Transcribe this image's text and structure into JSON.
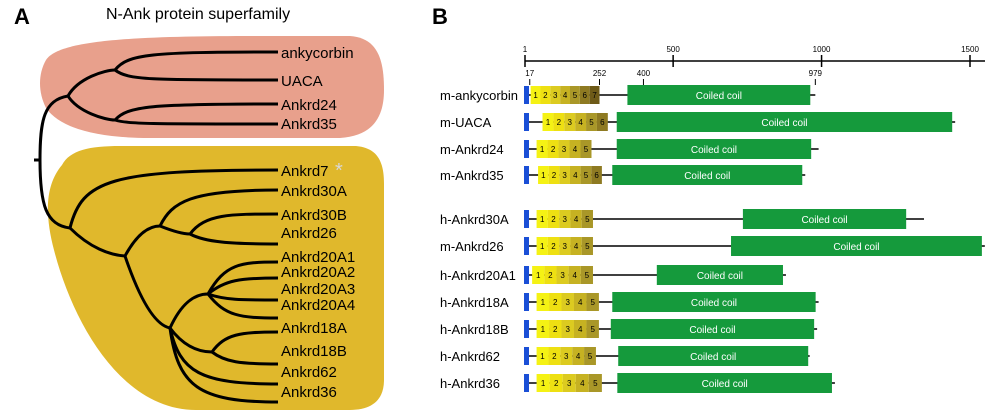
{
  "panel_a": {
    "letter": "A",
    "title": "N-Ank protein superfamily",
    "group_colors": {
      "upper": "#e8a08c",
      "lower": "#e0b82c"
    },
    "asterisk": "*",
    "asterisk_color": "#d8d8d8",
    "leaves": [
      "ankycorbin",
      "UACA",
      "Ankrd24",
      "Ankrd35",
      "Ankrd7",
      "Ankrd30A",
      "Ankrd30B",
      "Ankrd26",
      "Ankrd20A1",
      "Ankrd20A2",
      "Ankrd20A3",
      "Ankrd20A4",
      "Ankrd18A",
      "Ankrd18B",
      "Ankrd62",
      "Ankrd36"
    ]
  },
  "panel_b": {
    "letter": "B",
    "scale_ticks": [
      "1",
      "500",
      "1000",
      "1500"
    ],
    "scale_max": 1500,
    "ref_marks": [
      "17",
      "252",
      "400",
      "979"
    ],
    "coil_label": "Coiled coil",
    "colors": {
      "blue": "#1a4fd6",
      "green": "#159a3c",
      "ank_light": "#f5f214",
      "ank_dark": "#6e5a18"
    },
    "proteins": [
      {
        "name": "m-ankycorbin",
        "start": 17,
        "ank": [
          "1",
          "2",
          "3",
          "4",
          "5",
          "6",
          "7"
        ],
        "ank_start": 20,
        "ank_end": 252,
        "coil_start": 346,
        "coil_end": 962,
        "end": 979
      },
      {
        "name": "m-UACA",
        "start": 17,
        "ank": [
          "1",
          "2",
          "3",
          "4",
          "5",
          "6"
        ],
        "ank_start": 60,
        "ank_end": 280,
        "coil_start": 310,
        "coil_end": 1440,
        "end": 1450
      },
      {
        "name": "m-Ankrd24",
        "start": 17,
        "ank": [
          "1",
          "2",
          "3",
          "4",
          "5"
        ],
        "ank_start": 40,
        "ank_end": 225,
        "coil_start": 310,
        "coil_end": 965,
        "end": 990
      },
      {
        "name": "m-Ankrd35",
        "start": 17,
        "ank": [
          "1",
          "2",
          "3",
          "4",
          "5",
          "6"
        ],
        "ank_start": 45,
        "ank_end": 260,
        "coil_start": 295,
        "coil_end": 935,
        "end": 945
      },
      {
        "name": "h-Ankrd30A",
        "start": 17,
        "ank": [
          "1",
          "2",
          "3",
          "4",
          "5"
        ],
        "ank_start": 40,
        "ank_end": 230,
        "coil_start": 735,
        "coil_end": 1285,
        "end": 1345
      },
      {
        "name": "m-Ankrd26",
        "start": 17,
        "ank": [
          "1",
          "2",
          "3",
          "4",
          "5"
        ],
        "ank_start": 40,
        "ank_end": 230,
        "coil_start": 695,
        "coil_end": 1540,
        "end": 1550
      },
      {
        "name": "h-Ankrd20A1",
        "start": 17,
        "ank": [
          "1",
          "2",
          "3",
          "4",
          "5"
        ],
        "ank_start": 25,
        "ank_end": 230,
        "coil_start": 445,
        "coil_end": 870,
        "end": 880
      },
      {
        "name": "h-Ankrd18A",
        "start": 17,
        "ank": [
          "1",
          "2",
          "3",
          "4",
          "5"
        ],
        "ank_start": 40,
        "ank_end": 250,
        "coil_start": 295,
        "coil_end": 980,
        "end": 990
      },
      {
        "name": "h-Ankrd18B",
        "start": 17,
        "ank": [
          "1",
          "2",
          "3",
          "4",
          "5"
        ],
        "ank_start": 40,
        "ank_end": 250,
        "coil_start": 290,
        "coil_end": 975,
        "end": 985
      },
      {
        "name": "h-Ankrd62",
        "start": 17,
        "ank": [
          "1",
          "2",
          "3",
          "4",
          "5"
        ],
        "ank_start": 40,
        "ank_end": 240,
        "coil_start": 315,
        "coil_end": 955,
        "end": 960
      },
      {
        "name": "h-Ankrd36",
        "start": 17,
        "ank": [
          "1",
          "2",
          "3",
          "4",
          "5"
        ],
        "ank_start": 40,
        "ank_end": 260,
        "coil_start": 312,
        "coil_end": 1035,
        "end": 1045
      }
    ]
  }
}
